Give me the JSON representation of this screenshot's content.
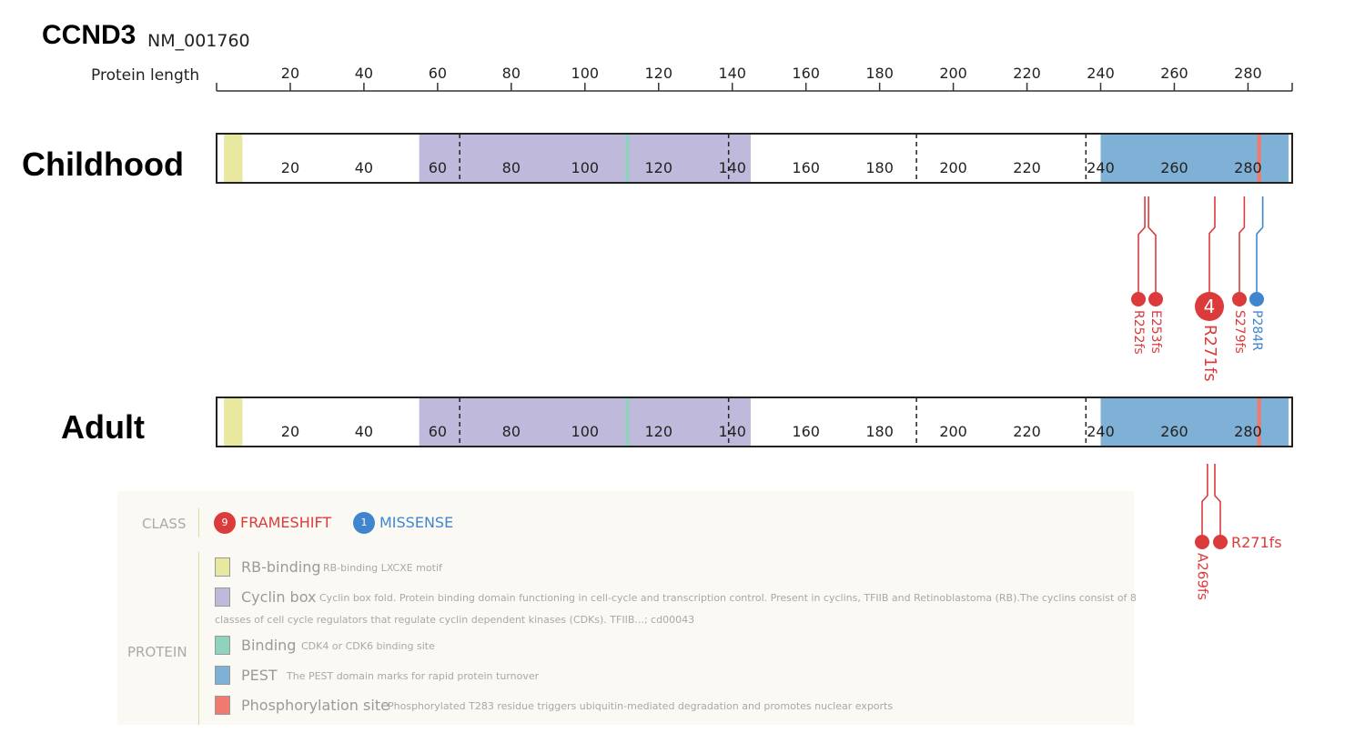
{
  "header": {
    "gene": "CCND3",
    "accession": "NM_001760",
    "axis_label": "Protein length"
  },
  "protein": {
    "length": 292,
    "scale_ticks": [
      20,
      40,
      60,
      80,
      100,
      120,
      140,
      160,
      180,
      200,
      220,
      240,
      260,
      280
    ],
    "domains": [
      {
        "name": "RB-binding",
        "start": 2,
        "end": 7,
        "color": "#e8e8a0"
      },
      {
        "name": "Cyclin box",
        "start": 55,
        "end": 145,
        "color": "#bfb9db"
      },
      {
        "name": "Binding",
        "start": 111,
        "end": 112,
        "color": "#8fd2be"
      },
      {
        "name": "PEST",
        "start": 240,
        "end": 291,
        "color": "#7fb0d6"
      },
      {
        "name": "Phosphorylation site",
        "start": 282.5,
        "end": 283.5,
        "color": "#f07a6e"
      }
    ],
    "dashed_lines": [
      66,
      139,
      190,
      236
    ]
  },
  "tracks": [
    {
      "title": "Childhood",
      "mutations": [
        {
          "label": "R252fs",
          "position": 252,
          "count": 1,
          "class": "frameshift"
        },
        {
          "label": "E253fs",
          "position": 253,
          "count": 1,
          "class": "frameshift"
        },
        {
          "label": "R271fs",
          "position": 271,
          "count": 4,
          "class": "frameshift"
        },
        {
          "label": "S279fs",
          "position": 279,
          "count": 1,
          "class": "frameshift"
        },
        {
          "label": "P284R",
          "position": 284,
          "count": 1,
          "class": "missense"
        }
      ]
    },
    {
      "title": "Adult",
      "mutations": [
        {
          "label": "A269fs",
          "position": 269,
          "count": 1,
          "class": "frameshift"
        },
        {
          "label": "R271fs",
          "position": 271,
          "count": 1,
          "class": "frameshift"
        }
      ]
    }
  ],
  "legend": {
    "class_heading": "CLASS",
    "protein_heading": "PROTEIN",
    "classes": [
      {
        "count": "9",
        "label": "FRAMESHIFT",
        "color": "#dc3b3b"
      },
      {
        "count": "1",
        "label": "MISSENSE",
        "color": "#3f86cf"
      }
    ],
    "domains": [
      {
        "name": "RB-binding",
        "color": "#e8e8a0",
        "desc": "RB-binding LXCXE motif"
      },
      {
        "name": "Cyclin box",
        "color": "#bfb9db",
        "desc": "Cyclin box fold. Protein binding domain functioning in cell-cycle and transcription control. Present in cyclins, TFIIB and Retinoblastoma (RB).The cyclins consist of 8",
        "desc_cont": "classes of cell cycle regulators that regulate cyclin dependent kinases (CDKs). TFIIB...; cd00043"
      },
      {
        "name": "Binding",
        "color": "#8fd2be",
        "desc": "CDK4 or CDK6 binding site"
      },
      {
        "name": "PEST",
        "color": "#7fb0d6",
        "desc": "The PEST domain marks for rapid protein turnover"
      },
      {
        "name": "Phosphorylation site",
        "color": "#f07a6e",
        "desc": "Phosphorylated T283 residue triggers ubiquitin-mediated degradation and promotes nuclear exports"
      }
    ]
  }
}
